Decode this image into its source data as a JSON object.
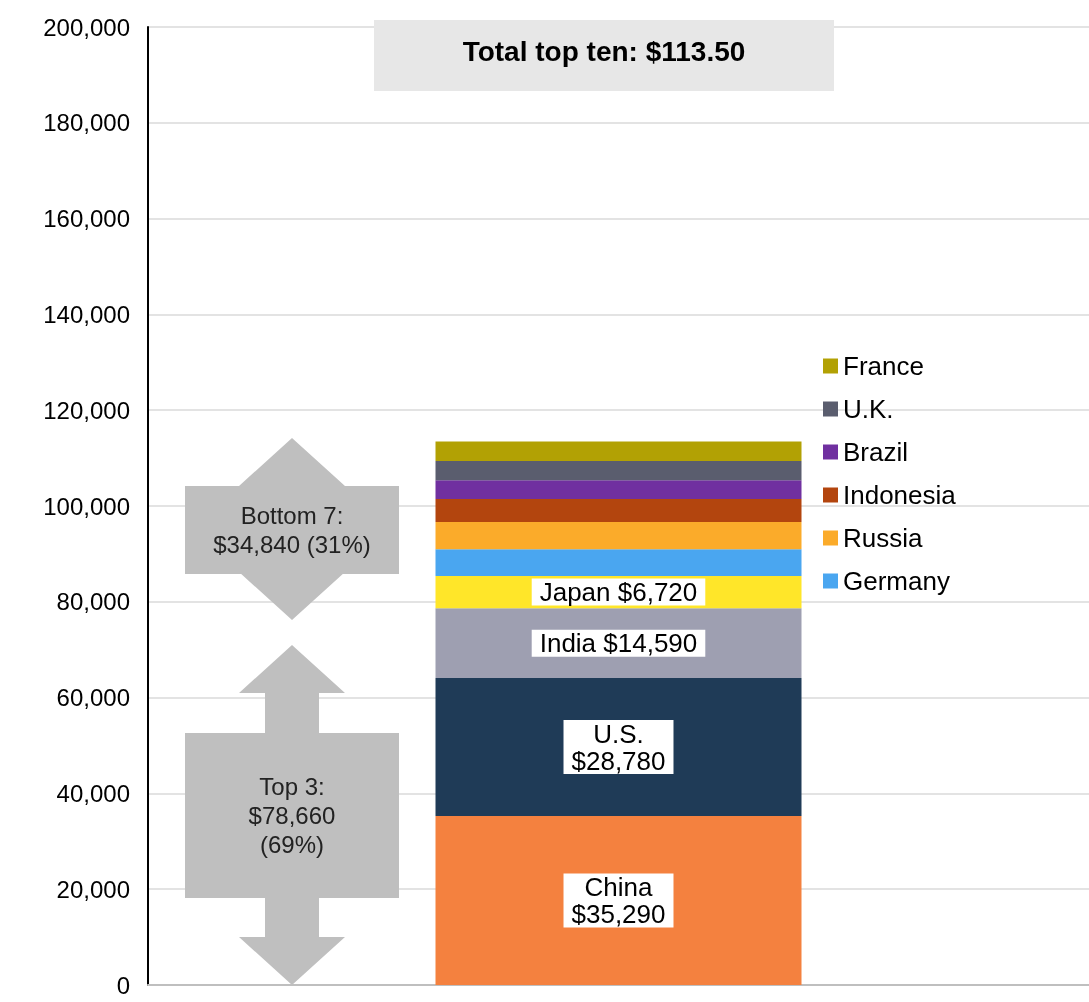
{
  "chart_data": {
    "type": "bar",
    "title": "Total top ten: $113.50",
    "categories": [
      null
    ],
    "stacked": true,
    "series": [
      {
        "color": "#f4813f",
        "values": [
          35290
        ],
        "value_labels": [
          "China\n$35,290"
        ]
      },
      {
        "color": "#1f3b57",
        "values": [
          28780
        ],
        "value_labels": [
          "U.S.\n$28,780"
        ]
      },
      {
        "color": "#9e9fb1",
        "values": [
          14590
        ],
        "value_labels": [
          "India $14,590"
        ]
      },
      {
        "color": "#ffe629",
        "values": [
          6720
        ],
        "value_labels": [
          "Japan $6,720"
        ]
      },
      {
        "name": "Germany",
        "color": "#4aa6f0",
        "values": [
          5600
        ]
      },
      {
        "name": "Russia",
        "color": "#fbab2a",
        "values": [
          5700
        ]
      },
      {
        "name": "Indonesia",
        "color": "#b3450e",
        "values": [
          4800
        ]
      },
      {
        "name": "Brazil",
        "color": "#7030a0",
        "values": [
          3900
        ]
      },
      {
        "name": "U.K.",
        "color": "#5a5d6e",
        "values": [
          4000
        ]
      },
      {
        "name": "France",
        "color": "#b2a104",
        "values": [
          4100
        ]
      }
    ],
    "annotations": [
      "Bottom 7:\n$34,840 (31%)",
      "Top 3:\n$78,660\n(69%)"
    ],
    "ylim": [
      0,
      200000
    ],
    "yticks": [
      0,
      {
        "value": 20000,
        "label": "20,000"
      },
      {
        "value": 40000,
        "label": "40,000"
      },
      {
        "value": 60000,
        "label": "60,000"
      },
      {
        "value": 80000,
        "label": "80,000"
      },
      {
        "value": 100000,
        "label": "100,000"
      },
      {
        "value": 120000,
        "label": "120,000"
      },
      {
        "value": 140000,
        "label": "140,000"
      },
      {
        "value": 160000,
        "label": "160,000"
      },
      {
        "value": 180000,
        "label": "180,000"
      },
      {
        "value": 200000,
        "label": "200,000"
      }
    ],
    "grid": "y",
    "legend": "right"
  }
}
